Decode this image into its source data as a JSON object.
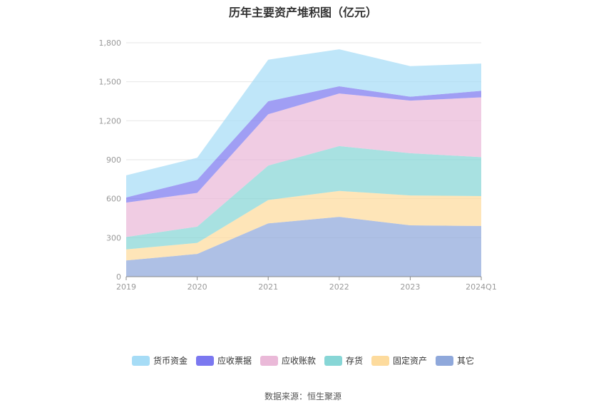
{
  "chart_data": {
    "type": "area",
    "stacked": true,
    "title": "历年主要资产堆积图（亿元）",
    "categories": [
      "2019",
      "2020",
      "2021",
      "2022",
      "2023",
      "2024Q1"
    ],
    "ylim": [
      0,
      1800
    ],
    "yticks": [
      0,
      300,
      600,
      900,
      1200,
      1500,
      1800
    ],
    "ytick_labels": [
      "0",
      "300",
      "600",
      "900",
      "1,200",
      "1,500",
      "1,800"
    ],
    "grid": true,
    "legend_position": "bottom",
    "series": [
      {
        "name": "其它",
        "color": "#8fa8db",
        "values": [
          125,
          175,
          410,
          460,
          395,
          390
        ]
      },
      {
        "name": "固定资产",
        "color": "#fddb9d",
        "values": [
          85,
          85,
          180,
          200,
          230,
          230
        ]
      },
      {
        "name": "存货",
        "color": "#87d6d6",
        "values": [
          95,
          125,
          265,
          345,
          325,
          300
        ]
      },
      {
        "name": "应收账款",
        "color": "#eab9d8",
        "values": [
          265,
          260,
          395,
          405,
          405,
          460
        ]
      },
      {
        "name": "应收票据",
        "color": "#7b78f0",
        "values": [
          40,
          100,
          100,
          55,
          30,
          50
        ]
      },
      {
        "name": "货币资金",
        "color": "#a6dcf6",
        "values": [
          170,
          170,
          320,
          285,
          235,
          210
        ]
      }
    ]
  },
  "legend_order": [
    "货币资金",
    "应收票据",
    "应收账款",
    "存货",
    "固定资产",
    "其它"
  ],
  "footer": {
    "source": "数据来源：恒生聚源"
  }
}
